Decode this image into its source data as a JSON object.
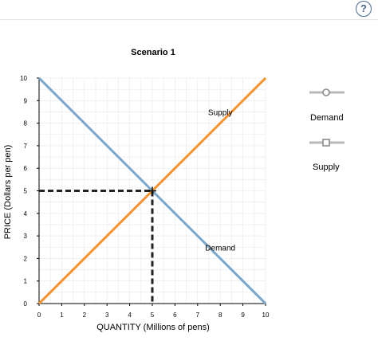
{
  "help": {
    "label": "?"
  },
  "colors": {
    "demand": "#7ba7cc",
    "supply": "#f6932e",
    "guide": "#222222",
    "grid": "#e8e8e8",
    "axis": "#000000"
  },
  "palette": {
    "demand_tool_label": "Demand",
    "demand_tool_icon": "circle-handle-icon",
    "supply_tool_label": "Supply",
    "supply_tool_icon": "square-handle-icon"
  },
  "chart_data": {
    "type": "line",
    "title": "Scenario 1",
    "xlabel": "QUANTITY (Millions of pens)",
    "ylabel": "PRICE (Dollars per pen)",
    "xlim": [
      0,
      10
    ],
    "ylim": [
      0,
      10
    ],
    "xticks": [
      "0",
      "1",
      "2",
      "3",
      "4",
      "5",
      "6",
      "7",
      "8",
      "9",
      "10"
    ],
    "yticks": [
      "0",
      "1",
      "2",
      "3",
      "4",
      "5",
      "6",
      "7",
      "8",
      "9",
      "10"
    ],
    "grid": true,
    "series": [
      {
        "name": "Demand",
        "color": "#7ba7cc",
        "points": [
          [
            0,
            10
          ],
          [
            10,
            0
          ]
        ],
        "label_at": [
          8,
          2.5
        ]
      },
      {
        "name": "Supply",
        "color": "#f6932e",
        "points": [
          [
            0,
            0
          ],
          [
            10,
            10
          ]
        ],
        "label_at": [
          8,
          8.5
        ]
      }
    ],
    "equilibrium": {
      "x": 5,
      "y": 5,
      "marker": "cross"
    },
    "guide_lines": {
      "style": "dashed",
      "color": "#222222"
    }
  }
}
